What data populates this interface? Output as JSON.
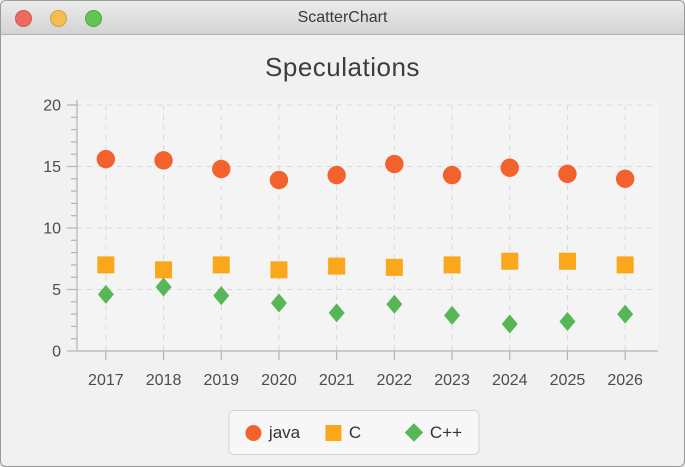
{
  "window": {
    "title": "ScatterChart",
    "controls": [
      {
        "name": "close",
        "color": "#ee6a5f"
      },
      {
        "name": "minimize",
        "color": "#f5bd4f"
      },
      {
        "name": "zoom",
        "color": "#61c454"
      }
    ]
  },
  "chart_data": {
    "type": "scatter",
    "title": "Speculations",
    "xlabel": "",
    "ylabel": "",
    "categories": [
      "2017",
      "2018",
      "2019",
      "2020",
      "2021",
      "2022",
      "2023",
      "2024",
      "2025",
      "2026"
    ],
    "series": [
      {
        "name": "java",
        "marker": "circle",
        "color": "#f3622d",
        "values": [
          15.6,
          15.5,
          14.8,
          13.9,
          14.3,
          15.2,
          14.3,
          14.9,
          14.4,
          14.0
        ]
      },
      {
        "name": "C",
        "marker": "square",
        "color": "#fba71b",
        "values": [
          7.0,
          6.6,
          7.0,
          6.6,
          6.9,
          6.8,
          7.0,
          7.3,
          7.3,
          7.0
        ]
      },
      {
        "name": "C++",
        "marker": "diamond",
        "color": "#57b757",
        "values": [
          4.6,
          5.2,
          4.5,
          3.9,
          3.1,
          3.8,
          2.9,
          2.2,
          2.4,
          3.0
        ]
      }
    ],
    "ylim": [
      0,
      20
    ],
    "y_ticks": [
      0,
      5,
      10,
      15,
      20
    ],
    "y_minor_tick_step": 1,
    "grid": "dashed",
    "legend_position": "bottom"
  },
  "colors": {
    "plot_background": "#f4f4f4",
    "gridline": "#d8d8d8",
    "axis_line": "#b3b3b3",
    "tick_label": "#4c4c4c"
  }
}
